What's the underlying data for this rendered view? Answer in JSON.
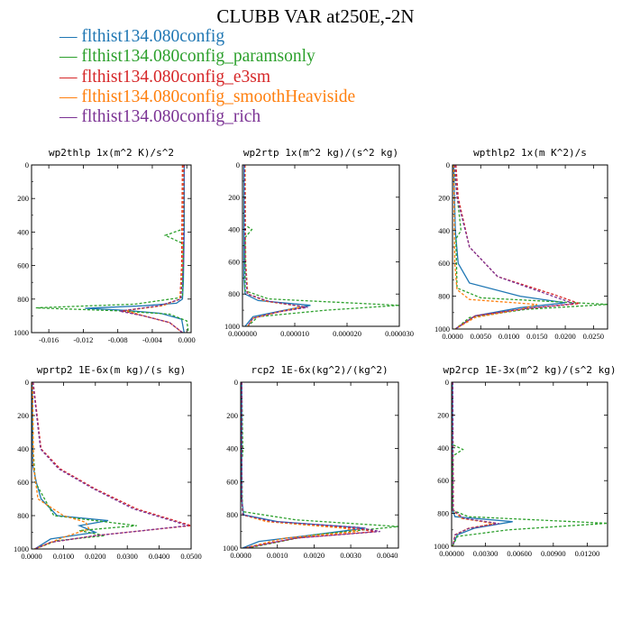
{
  "title": "CLUBB VAR at250E,-2N",
  "legend": [
    {
      "label": "— flthist134.080config",
      "color": "#1f77b4"
    },
    {
      "label": "— flthist134.080config_paramsonly",
      "color": "#2ca02c"
    },
    {
      "label": "— flthist134.080config_e3sm",
      "color": "#d62728"
    },
    {
      "label": "— flthist134.080config_smoothHeaviside",
      "color": "#ff7f0e"
    },
    {
      "label": "— flthist134.080config_rich",
      "color": "#7b3294"
    }
  ],
  "chart_data": [
    {
      "type": "line",
      "title": "wp2thlp  1x(m^2 K)/s^2",
      "xlim": [
        -0.018,
        0.0005
      ],
      "xticks": [
        "-0.016",
        "-0.012",
        "-0.008",
        "-0.004",
        "0.000"
      ],
      "xtick_values": [
        -0.016,
        -0.012,
        -0.008,
        -0.004,
        0.0
      ],
      "ylim": [
        1000,
        0
      ],
      "yticks": [
        "0",
        "200",
        "400",
        "600",
        "800",
        "1000"
      ],
      "series": [
        {
          "color": "#1f77b4",
          "dashed": false,
          "x": [
            -0.0003,
            -0.0003,
            -0.0004,
            -0.0005,
            -0.0012,
            -0.005,
            -0.0118,
            -0.007,
            -0.003,
            -0.0006,
            -0.0003
          ],
          "y": [
            0,
            400,
            700,
            800,
            825,
            840,
            855,
            868,
            885,
            920,
            1000
          ]
        },
        {
          "color": "#2ca02c",
          "dashed": true,
          "x": [
            -0.0003,
            -0.0003,
            -0.0025,
            -0.0004,
            -0.0005,
            -0.006,
            -0.0175,
            -0.008,
            -0.002,
            0.0,
            0.0002
          ],
          "y": [
            0,
            380,
            420,
            470,
            790,
            830,
            852,
            870,
            890,
            930,
            1000
          ]
        },
        {
          "color": "#d62728",
          "dashed": true,
          "x": [
            -0.0005,
            -0.0006,
            -0.0008,
            -0.003,
            -0.0075,
            -0.005,
            -0.002,
            -0.0005
          ],
          "y": [
            0,
            600,
            800,
            840,
            870,
            900,
            940,
            1000
          ]
        },
        {
          "color": "#ff7f0e",
          "dashed": true,
          "x": [
            -0.0004,
            -0.0005,
            -0.0008,
            -0.0028,
            -0.007,
            -0.005,
            -0.002,
            -0.0005
          ],
          "y": [
            0,
            600,
            800,
            840,
            868,
            900,
            940,
            1000
          ]
        },
        {
          "color": "#7b3294",
          "dashed": true,
          "x": [
            -0.0003,
            -0.0004,
            -0.0007,
            -0.0032,
            -0.0078,
            -0.005,
            -0.002,
            -0.0005
          ],
          "y": [
            0,
            600,
            800,
            840,
            872,
            900,
            940,
            1000
          ]
        }
      ]
    },
    {
      "type": "line",
      "title": "wp2rtp  1x(m^2 kg)/(s^2 kg)",
      "xlim": [
        0,
        3e-05
      ],
      "xticks": [
        "0.000000",
        "0.000010",
        "0.000020",
        "0.000030"
      ],
      "xtick_values": [
        0,
        1e-05,
        2e-05,
        3e-05
      ],
      "ylim": [
        1000,
        0
      ],
      "yticks": [
        "0",
        "200",
        "400",
        "600",
        "800",
        "1000"
      ],
      "series": [
        {
          "color": "#1f77b4",
          "dashed": false,
          "x": [
            3e-07,
            3e-07,
            5e-07,
            3e-06,
            1.3e-05,
            8e-06,
            2e-06,
            5e-07
          ],
          "y": [
            0,
            700,
            800,
            840,
            870,
            900,
            940,
            1000
          ]
        },
        {
          "color": "#2ca02c",
          "dashed": true,
          "x": [
            4e-07,
            4e-07,
            1.8e-06,
            5e-07,
            5e-07,
            5e-06,
            3e-05,
            1.6e-05,
            3e-06,
            1e-06
          ],
          "y": [
            0,
            370,
            400,
            450,
            780,
            830,
            870,
            900,
            940,
            1000
          ]
        },
        {
          "color": "#d62728",
          "dashed": true,
          "x": [
            5e-07,
            6e-07,
            1e-06,
            5e-06,
            1.2e-05,
            7e-06,
            2e-06,
            1e-06
          ],
          "y": [
            0,
            600,
            800,
            845,
            880,
            910,
            950,
            1000
          ]
        },
        {
          "color": "#ff7f0e",
          "dashed": true,
          "x": [
            5e-07,
            6e-07,
            1e-06,
            4.5e-06,
            1.15e-05,
            7e-06,
            2e-06,
            1e-06
          ],
          "y": [
            0,
            600,
            800,
            845,
            878,
            910,
            950,
            1000
          ]
        },
        {
          "color": "#7b3294",
          "dashed": true,
          "x": [
            4e-07,
            5e-07,
            9e-07,
            5e-06,
            1.25e-05,
            7e-06,
            2e-06,
            1e-06
          ],
          "y": [
            0,
            600,
            800,
            845,
            882,
            910,
            950,
            1000
          ]
        }
      ]
    },
    {
      "type": "line",
      "title": "wpthlp2  1x(m K^2)/s",
      "xlim": [
        0,
        0.0275
      ],
      "xticks": [
        "0.0000",
        "0.0050",
        "0.0100",
        "0.0150",
        "0.0200",
        "0.0250"
      ],
      "xtick_values": [
        0,
        0.005,
        0.01,
        0.015,
        0.02,
        0.025
      ],
      "ylim": [
        1000,
        0
      ],
      "yticks": [
        "0",
        "200",
        "400",
        "600",
        "800",
        "1000"
      ],
      "series": [
        {
          "color": "#1f77b4",
          "dashed": false,
          "x": [
            0.0002,
            0.0005,
            0.001,
            0.003,
            0.012,
            0.02,
            0.012,
            0.004,
            0.0005
          ],
          "y": [
            0,
            400,
            600,
            720,
            800,
            840,
            870,
            920,
            1000
          ]
        },
        {
          "color": "#2ca02c",
          "dashed": true,
          "x": [
            0.0002,
            0.0015,
            0.0006,
            0.0008,
            0.005,
            0.0275,
            0.013,
            0.003,
            0.0005
          ],
          "y": [
            0,
            400,
            450,
            750,
            810,
            850,
            880,
            930,
            1000
          ]
        },
        {
          "color": "#d62728",
          "dashed": true,
          "x": [
            0.0006,
            0.001,
            0.003,
            0.008,
            0.018,
            0.0225,
            0.013,
            0.004,
            0.0005
          ],
          "y": [
            0,
            200,
            500,
            680,
            790,
            845,
            875,
            920,
            1000
          ]
        },
        {
          "color": "#ff7f0e",
          "dashed": true,
          "x": [
            0.0002,
            0.0004,
            0.0008,
            0.003,
            0.015,
            0.012,
            0.004,
            0.0005
          ],
          "y": [
            0,
            600,
            760,
            820,
            850,
            880,
            930,
            1000
          ]
        },
        {
          "color": "#7b3294",
          "dashed": true,
          "x": [
            0.0004,
            0.0008,
            0.003,
            0.008,
            0.017,
            0.0215,
            0.013,
            0.004,
            0.0005
          ],
          "y": [
            0,
            200,
            500,
            680,
            790,
            845,
            875,
            920,
            1000
          ]
        }
      ]
    },
    {
      "type": "line",
      "title": "wprtp2  1E-6x(m kg)/(s kg)",
      "xlim": [
        0,
        0.05
      ],
      "xticks": [
        "0.0000",
        "0.0100",
        "0.0200",
        "0.0300",
        "0.0400",
        "0.0500"
      ],
      "xtick_values": [
        0,
        0.01,
        0.02,
        0.03,
        0.04,
        0.05
      ],
      "ylim": [
        1000,
        0
      ],
      "yticks": [
        "0",
        "200",
        "400",
        "600",
        "800",
        "1000"
      ],
      "series": [
        {
          "color": "#1f77b4",
          "dashed": false,
          "x": [
            0.0002,
            0.0004,
            0.0015,
            0.003,
            0.008,
            0.024,
            0.015,
            0.02,
            0.006,
            0.001
          ],
          "y": [
            0,
            500,
            600,
            700,
            800,
            830,
            860,
            900,
            940,
            1000
          ]
        },
        {
          "color": "#2ca02c",
          "dashed": true,
          "x": [
            0.0003,
            0.0005,
            0.0012,
            0.007,
            0.033,
            0.015,
            0.023,
            0.008,
            0.001
          ],
          "y": [
            0,
            400,
            600,
            800,
            860,
            890,
            920,
            950,
            1000
          ]
        },
        {
          "color": "#d62728",
          "dashed": true,
          "x": [
            0.0005,
            0.003,
            0.009,
            0.02,
            0.033,
            0.05,
            0.035,
            0.02,
            0.006,
            0.001
          ],
          "y": [
            0,
            400,
            520,
            640,
            760,
            860,
            890,
            920,
            960,
            1000
          ]
        },
        {
          "color": "#ff7f0e",
          "dashed": true,
          "x": [
            0.0003,
            0.0006,
            0.002,
            0.01,
            0.017,
            0.018,
            0.01,
            0.001
          ],
          "y": [
            0,
            500,
            700,
            800,
            840,
            880,
            930,
            1000
          ]
        },
        {
          "color": "#7b3294",
          "dashed": true,
          "x": [
            0.0004,
            0.0028,
            0.0085,
            0.0195,
            0.032,
            0.049,
            0.035,
            0.02,
            0.006,
            0.001
          ],
          "y": [
            0,
            400,
            520,
            640,
            760,
            860,
            890,
            920,
            960,
            1000
          ]
        }
      ]
    },
    {
      "type": "line",
      "title": "rcp2  1E-6x(kg^2)/(kg^2)",
      "xlim": [
        0,
        0.0043
      ],
      "xticks": [
        "0.0000",
        "0.0010",
        "0.0020",
        "0.0030",
        "0.0040"
      ],
      "xtick_values": [
        0,
        0.001,
        0.002,
        0.003,
        0.004
      ],
      "ylim": [
        1000,
        0
      ],
      "yticks": [
        "0",
        "200",
        "400",
        "600",
        "800",
        "1000"
      ],
      "series": [
        {
          "color": "#1f77b4",
          "dashed": false,
          "x": [
            3e-05,
            3e-05,
            8e-05,
            0.001,
            0.0034,
            0.002,
            0.0005,
            5e-05
          ],
          "y": [
            0,
            700,
            800,
            840,
            880,
            920,
            960,
            1000
          ]
        },
        {
          "color": "#2ca02c",
          "dashed": true,
          "x": [
            3e-05,
            6e-05,
            3e-05,
            5e-05,
            0.0015,
            0.0043,
            0.002,
            0.0002
          ],
          "y": [
            0,
            430,
            470,
            780,
            830,
            870,
            920,
            1000
          ]
        },
        {
          "color": "#d62728",
          "dashed": true,
          "x": [
            3e-05,
            3e-05,
            6e-05,
            0.0008,
            0.003,
            0.0037,
            0.0015,
            0.0001
          ],
          "y": [
            0,
            700,
            800,
            840,
            880,
            900,
            940,
            1000
          ]
        },
        {
          "color": "#ff7f0e",
          "dashed": true,
          "x": [
            3e-05,
            3e-05,
            6e-05,
            0.0007,
            0.0028,
            0.0032,
            0.0012,
            0.0001
          ],
          "y": [
            0,
            700,
            800,
            840,
            880,
            900,
            940,
            1000
          ]
        },
        {
          "color": "#7b3294",
          "dashed": true,
          "x": [
            3e-05,
            3e-05,
            6e-05,
            0.0009,
            0.0032,
            0.0038,
            0.0015,
            0.0001
          ],
          "y": [
            0,
            700,
            800,
            840,
            875,
            900,
            940,
            1000
          ]
        }
      ]
    },
    {
      "type": "line",
      "title": "wp2rcp  1E-3x(m^2 kg)/(s^2 kg)",
      "xlim": [
        0,
        0.0138
      ],
      "xticks": [
        "0.00000",
        "0.00300",
        "0.00600",
        "0.00900",
        "0.01200"
      ],
      "xtick_values": [
        0,
        0.003,
        0.006,
        0.009,
        0.012
      ],
      "ylim": [
        1000,
        0
      ],
      "yticks": [
        "0",
        "200",
        "400",
        "600",
        "800",
        "1000"
      ],
      "series": [
        {
          "color": "#1f77b4",
          "dashed": false,
          "x": [
            8e-05,
            8e-05,
            0.0003,
            0.0054,
            0.002,
            0.0005,
            8e-05
          ],
          "y": [
            0,
            780,
            820,
            850,
            890,
            930,
            1000
          ]
        },
        {
          "color": "#2ca02c",
          "dashed": true,
          "x": [
            5e-05,
            8e-05,
            0.001,
            0.0001,
            8e-05,
            0.0015,
            0.0138,
            0.005,
            0.0005,
            8e-05
          ],
          "y": [
            0,
            380,
            410,
            450,
            780,
            820,
            860,
            900,
            940,
            1000
          ]
        },
        {
          "color": "#d62728",
          "dashed": true,
          "x": [
            0.0001,
            0.00015,
            0.001,
            0.004,
            0.0015,
            0.0003,
            0.0001
          ],
          "y": [
            0,
            780,
            830,
            860,
            890,
            930,
            1000
          ]
        },
        {
          "color": "#ff7f0e",
          "dashed": true,
          "x": [
            8e-05,
            0.0001,
            0.0009,
            0.0038,
            0.0015,
            0.0003,
            0.0001
          ],
          "y": [
            0,
            780,
            830,
            862,
            892,
            930,
            1000
          ]
        },
        {
          "color": "#7b3294",
          "dashed": true,
          "x": [
            0.0001,
            0.00012,
            0.0011,
            0.0042,
            0.0015,
            0.0003,
            0.0001
          ],
          "y": [
            0,
            780,
            830,
            862,
            892,
            930,
            1000
          ]
        }
      ]
    }
  ]
}
